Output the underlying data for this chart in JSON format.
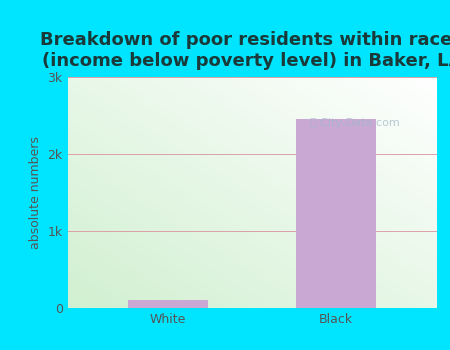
{
  "title": "Breakdown of poor residents within races\n(income below poverty level) in Baker, LA",
  "categories": [
    "White",
    "Black"
  ],
  "values": [
    100,
    2450
  ],
  "bar_color": "#c9a8d4",
  "ylabel": "absolute numbers",
  "ylim": [
    0,
    3000
  ],
  "yticks": [
    0,
    1000,
    2000,
    3000
  ],
  "yticklabels": [
    "0",
    "1k",
    "2k",
    "3k"
  ],
  "background_outer": "#00e5ff",
  "grid_color": "#dda0a8",
  "title_fontsize": 13,
  "label_fontsize": 9,
  "tick_fontsize": 9,
  "title_color": "#1a3a3a",
  "tick_color": "#555555"
}
